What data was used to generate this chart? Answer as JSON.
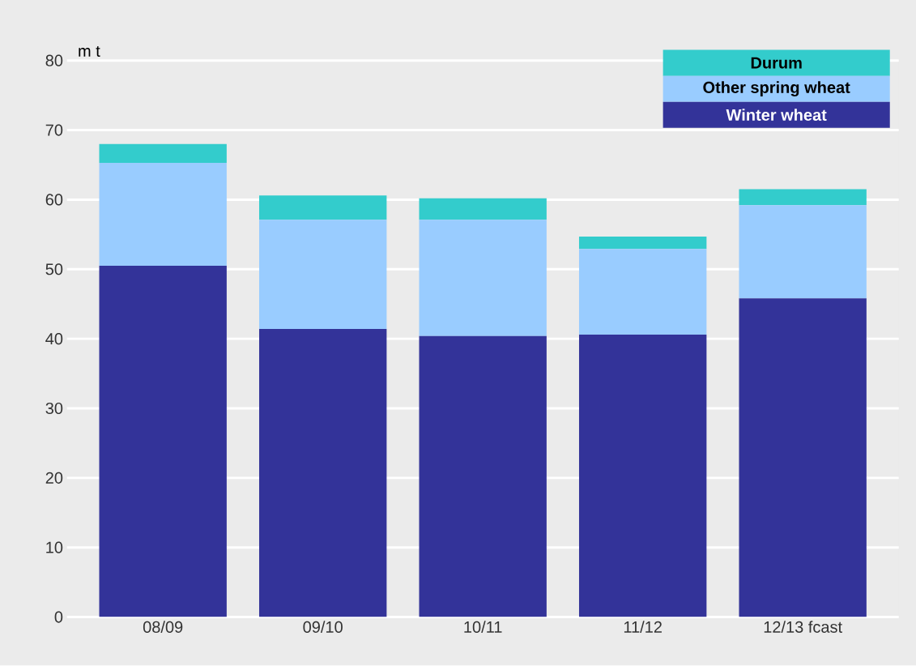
{
  "chart_data": {
    "type": "bar",
    "stacked": true,
    "ylabel": "m t",
    "categories": [
      "08/09",
      "09/10",
      "10/11",
      "11/12",
      "12/13 fcast"
    ],
    "series": [
      {
        "name": "Winter wheat",
        "color": "#333399",
        "values": [
          50.5,
          41.4,
          40.4,
          40.6,
          45.8
        ]
      },
      {
        "name": "Other spring wheat",
        "color": "#99ccff",
        "values": [
          14.8,
          15.7,
          16.7,
          12.3,
          13.4
        ]
      },
      {
        "name": "Durum",
        "color": "#33cccc",
        "values": [
          2.7,
          3.5,
          3.1,
          1.8,
          2.3
        ]
      }
    ],
    "ylim": [
      0,
      80
    ],
    "yticks": [
      0,
      10,
      20,
      30,
      40,
      50,
      60,
      70,
      80
    ],
    "grid": "y",
    "legend": "top right"
  }
}
